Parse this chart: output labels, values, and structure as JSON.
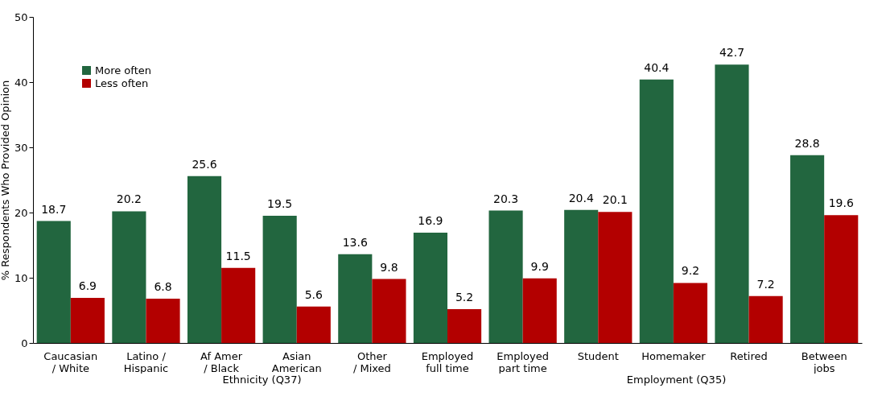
{
  "chart_data": {
    "type": "bar",
    "ylabel": "% Respondents Who Provided Opinion",
    "categories": [
      "Caucasian / White",
      "Latino / Hispanic",
      "Af Amer / Black",
      "Asian American",
      "Other / Mixed",
      "Employed full time",
      "Employed part time",
      "Student",
      "Homemaker",
      "Retired",
      "Between jobs"
    ],
    "series": [
      {
        "name": "More often",
        "color": "#22663f",
        "values": [
          18.7,
          20.2,
          25.6,
          19.5,
          13.6,
          16.9,
          20.3,
          20.4,
          40.4,
          42.7,
          28.8
        ]
      },
      {
        "name": "Less often",
        "color": "#b30000",
        "values": [
          6.9,
          6.8,
          11.5,
          5.6,
          9.8,
          5.2,
          9.9,
          20.1,
          9.2,
          7.2,
          19.6
        ]
      }
    ],
    "ylim": [
      0,
      50
    ],
    "yticks": [
      0,
      10,
      20,
      30,
      40,
      50
    ],
    "grid": false,
    "legend": "top left",
    "data_labels": true,
    "annotations": [
      "Ethnicity (Q37)",
      "Employment (Q35)"
    ]
  }
}
